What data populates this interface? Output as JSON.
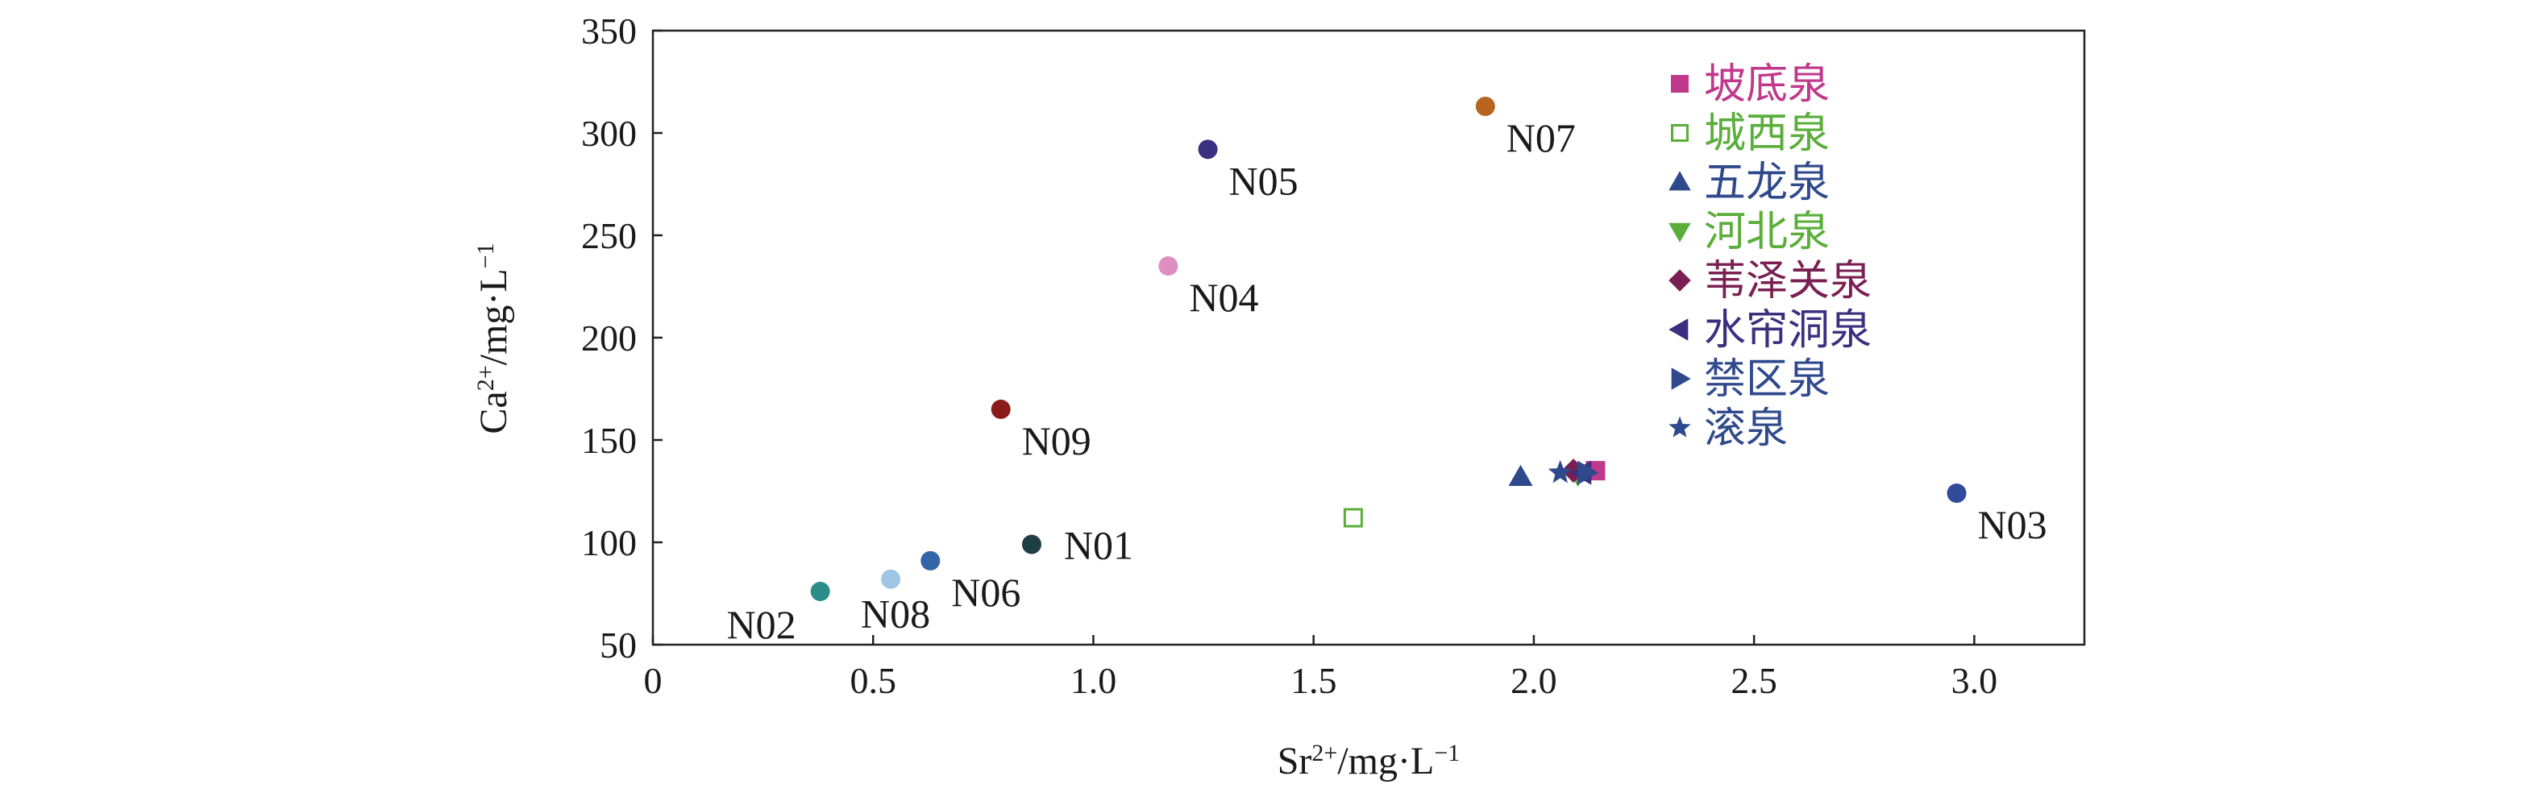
{
  "chart_data": {
    "type": "scatter",
    "title": "",
    "xlabel_main": "Sr",
    "xlabel_sup": "2+",
    "xlabel_unit": "/mg·L",
    "xlabel_unit_sup": "−1",
    "ylabel_main": "Ca",
    "ylabel_sup": "2+",
    "ylabel_unit": "/mg·L",
    "ylabel_unit_sup": "−1",
    "xlim": [
      0,
      3.25
    ],
    "ylim": [
      50,
      350
    ],
    "x_ticks": [
      {
        "value": 0,
        "label": "0"
      },
      {
        "value": 0.5,
        "label": "0.5"
      },
      {
        "value": 1.0,
        "label": "1.0"
      },
      {
        "value": 1.5,
        "label": "1.5"
      },
      {
        "value": 2.0,
        "label": "2.0"
      },
      {
        "value": 2.5,
        "label": "2.5"
      },
      {
        "value": 3.0,
        "label": "3.0"
      }
    ],
    "y_ticks": [
      {
        "value": 50,
        "label": "50"
      },
      {
        "value": 100,
        "label": "100"
      },
      {
        "value": 150,
        "label": "150"
      },
      {
        "value": 200,
        "label": "200"
      },
      {
        "value": 250,
        "label": "250"
      },
      {
        "value": 300,
        "label": "300"
      },
      {
        "value": 350,
        "label": "350"
      }
    ],
    "grid": false,
    "legend_position": "top-right",
    "labeled_points": [
      {
        "label": "N01",
        "x": 0.86,
        "y": 99,
        "color": "#1f3f44",
        "label_pos": "right"
      },
      {
        "label": "N02",
        "x": 0.38,
        "y": 76,
        "color": "#2b8c8a",
        "label_pos": "below-left"
      },
      {
        "label": "N03",
        "x": 2.96,
        "y": 124,
        "color": "#2f4b99",
        "label_pos": "below-right"
      },
      {
        "label": "N04",
        "x": 1.17,
        "y": 235,
        "color": "#de8fbf",
        "label_pos": "below-right"
      },
      {
        "label": "N05",
        "x": 1.26,
        "y": 292,
        "color": "#3b2f7f",
        "label_pos": "below-right"
      },
      {
        "label": "N06",
        "x": 0.63,
        "y": 91,
        "color": "#3366a8",
        "label_pos": "below-right"
      },
      {
        "label": "N07",
        "x": 1.89,
        "y": 313,
        "color": "#b8641f",
        "label_pos": "below-right"
      },
      {
        "label": "N08",
        "x": 0.54,
        "y": 82,
        "color": "#9fc6e3",
        "label_pos": "below"
      },
      {
        "label": "N09",
        "x": 0.79,
        "y": 165,
        "color": "#8b1a1a",
        "label_pos": "below-right"
      }
    ],
    "series": [
      {
        "name": "坡底泉",
        "marker": "square",
        "color": "#c0388c",
        "x": [
          2.14
        ],
        "y": [
          135
        ]
      },
      {
        "name": "城西泉",
        "marker": "square-open",
        "color": "#5aae3a",
        "x": [
          1.59
        ],
        "y": [
          112
        ]
      },
      {
        "name": "五龙泉",
        "marker": "triangle-up",
        "color": "#2f4a8c",
        "x": [
          1.97
        ],
        "y": [
          132
        ]
      },
      {
        "name": "河北泉",
        "marker": "triangle-down",
        "color": "#5aae3a",
        "x": [
          2.1
        ],
        "y": [
          133
        ]
      },
      {
        "name": "苇泽关泉",
        "marker": "diamond",
        "color": "#7a1f52",
        "x": [
          2.09
        ],
        "y": [
          135
        ]
      },
      {
        "name": "水帘洞泉",
        "marker": "triangle-left",
        "color": "#3b2f7f",
        "x": [
          2.11
        ],
        "y": [
          134
        ]
      },
      {
        "name": "禁区泉",
        "marker": "triangle-right",
        "color": "#2f4a8c",
        "x": [
          2.12
        ],
        "y": [
          134
        ]
      },
      {
        "name": "滚泉",
        "marker": "star",
        "color": "#2f4a8c",
        "x": [
          2.06
        ],
        "y": [
          134
        ]
      }
    ]
  }
}
